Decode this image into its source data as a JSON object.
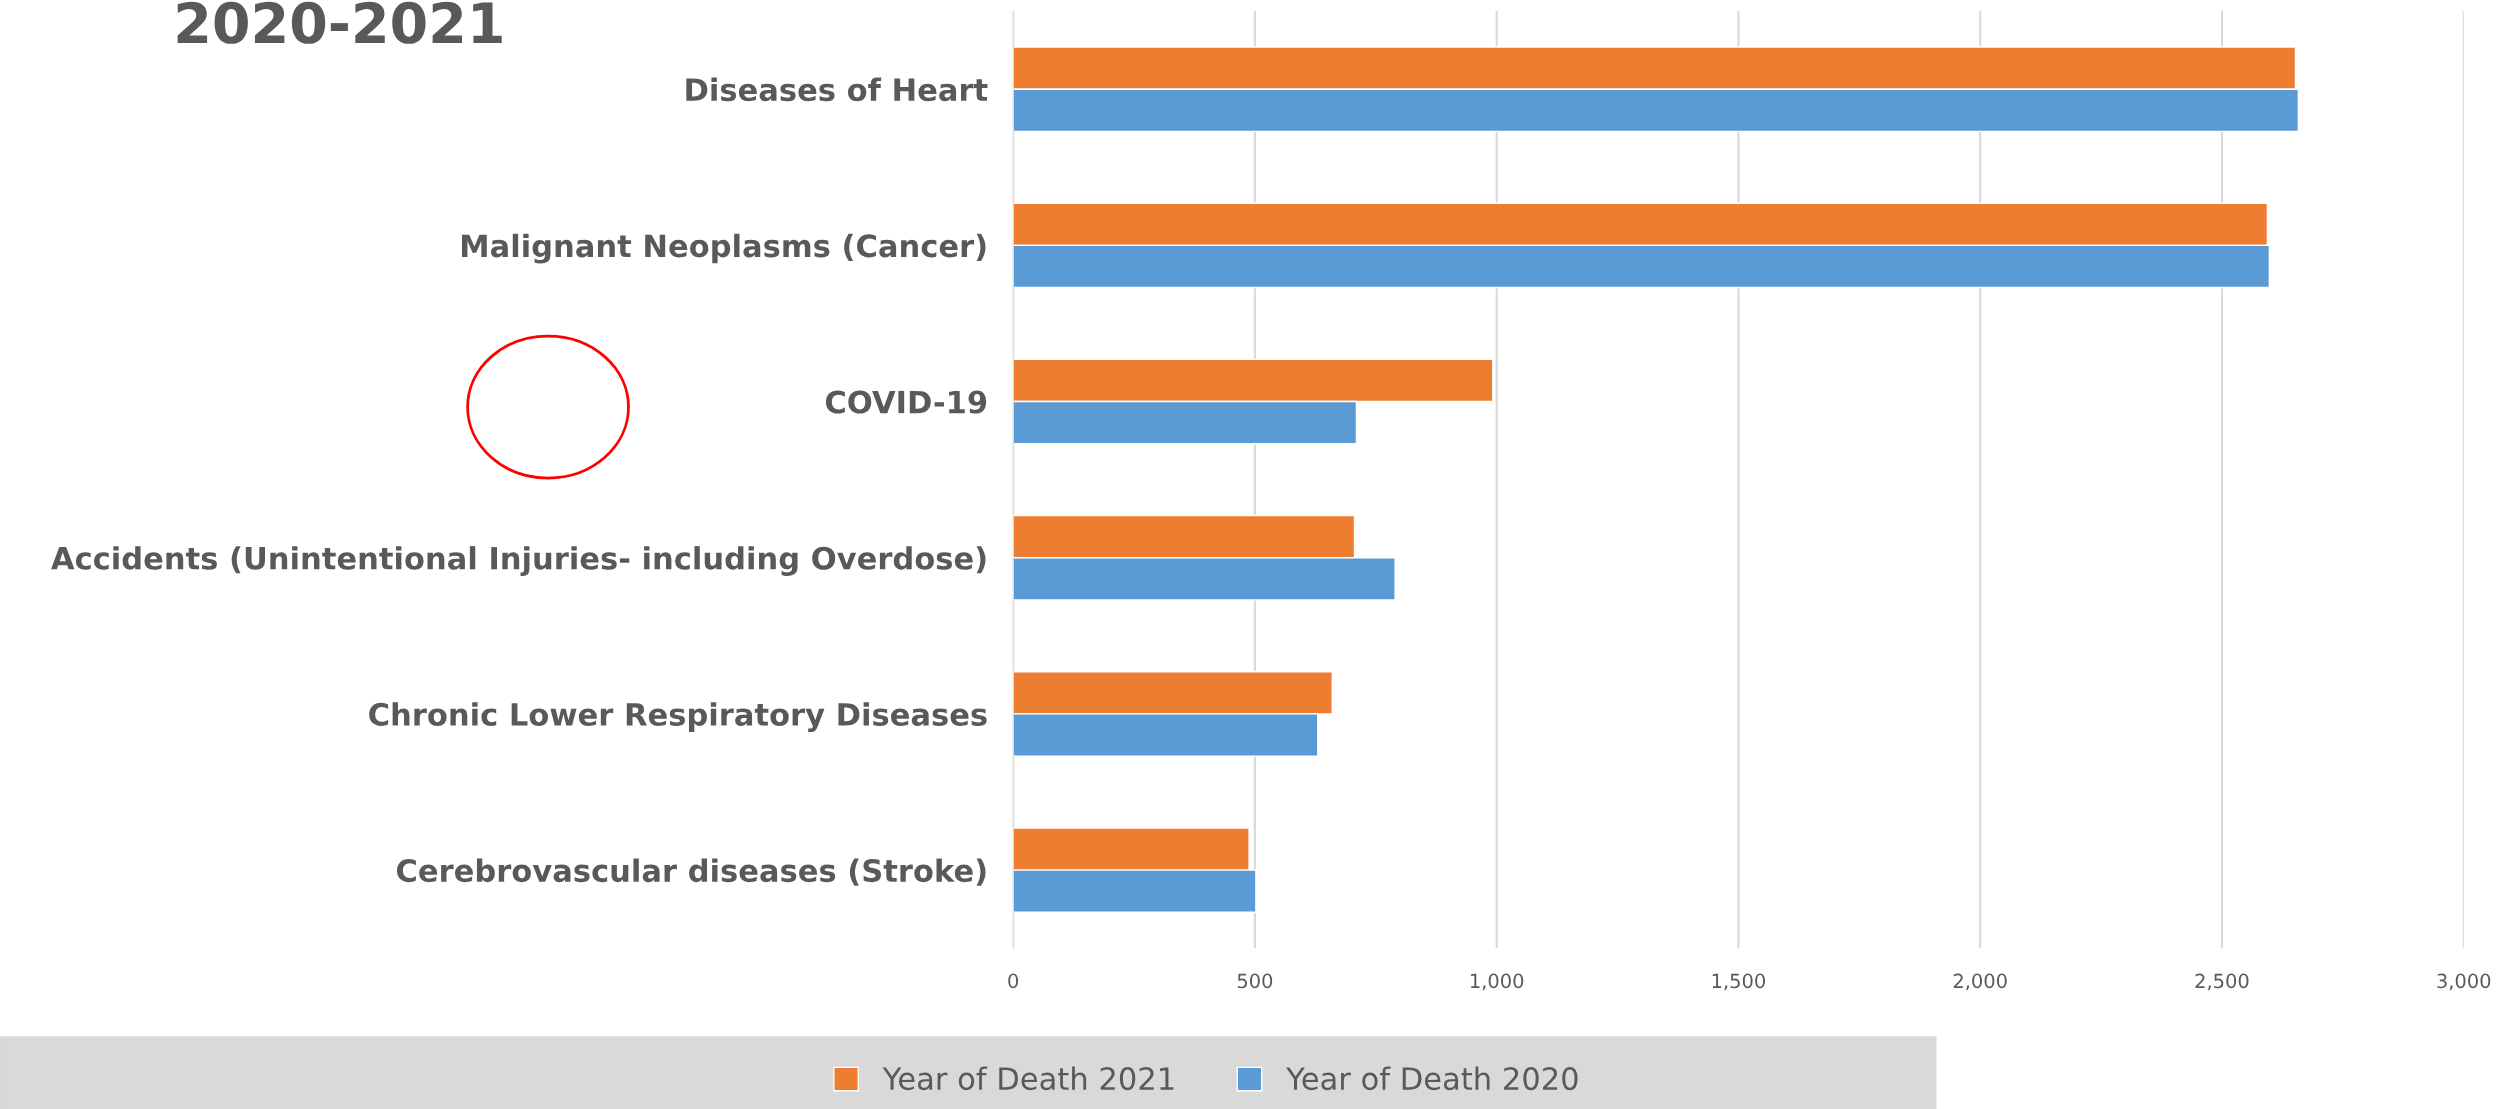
{
  "chart_data": {
    "type": "bar",
    "orientation": "horizontal",
    "title": "2020-2021",
    "categories": [
      "Diseases of Heart",
      "Malignant Neoplasms (Cancer)",
      "COVID-19",
      "Accidents (Unintentional Injuries- including Overdose)",
      "Chronic Lower Respiratory Diseases",
      "Cerebrovascular diseases (Stroke)"
    ],
    "series": [
      {
        "name": "Year of Death 2021",
        "color": "#ed7d31",
        "values": [
          2652,
          2594,
          992,
          706,
          660,
          488
        ]
      },
      {
        "name": "Year of Death 2020",
        "color": "#5b9bd5",
        "values": [
          2658,
          2598,
          710,
          790,
          630,
          502
        ]
      }
    ],
    "xlim": [
      0,
      3000
    ],
    "xticks": [
      0,
      {
        "value": 500,
        "label": "500"
      },
      {
        "value": 1000,
        "label": "1,000"
      },
      {
        "value": 1500,
        "label": "1,500"
      },
      {
        "value": 2000,
        "label": "2,000"
      },
      {
        "value": 2500,
        "label": "2,500"
      },
      {
        "value": 3000,
        "label": "3,000"
      }
    ],
    "grid": "x",
    "legend": "bottom"
  }
}
